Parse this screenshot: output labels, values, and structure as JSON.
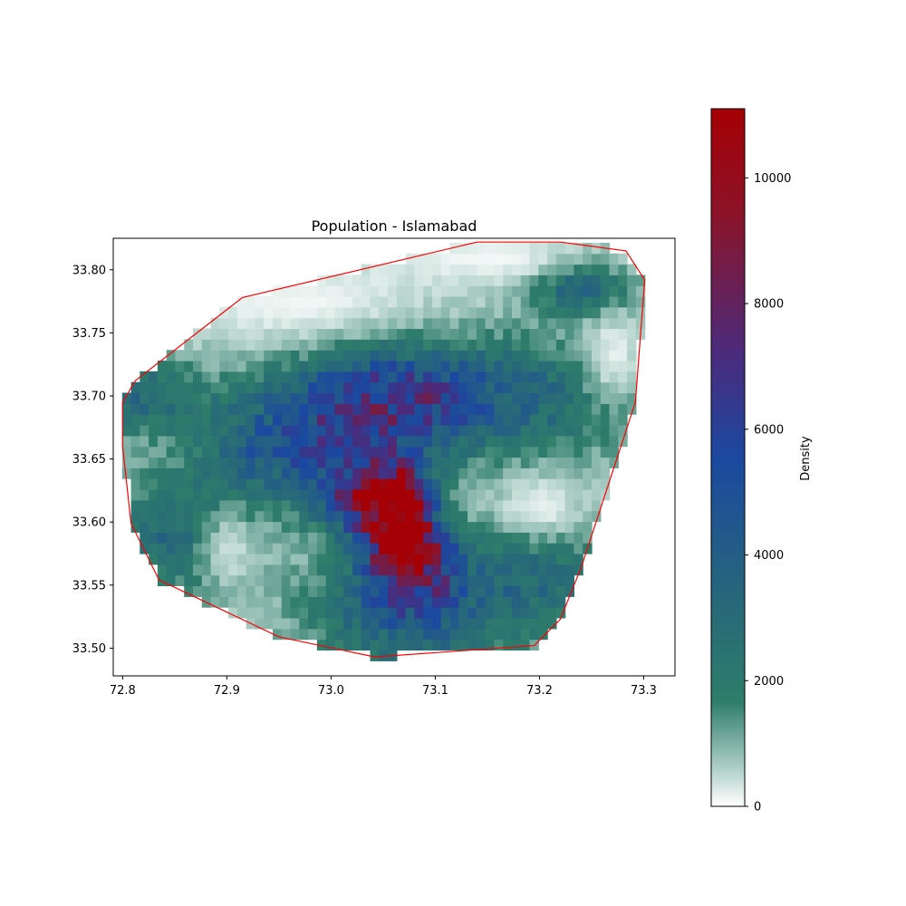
{
  "chart_data": {
    "type": "heatmap",
    "title": "Population - Islamabad",
    "xlabel": "",
    "ylabel": "",
    "xlim": [
      72.791,
      73.33
    ],
    "ylim": [
      33.478,
      33.825
    ],
    "x_ticks": [
      "72.8",
      "72.9",
      "73.0",
      "73.1",
      "73.2",
      "73.3"
    ],
    "x_tick_values": [
      72.8,
      72.9,
      73.0,
      73.1,
      73.2,
      73.3
    ],
    "y_ticks": [
      "33.50",
      "33.55",
      "33.60",
      "33.65",
      "33.70",
      "33.75",
      "33.80"
    ],
    "y_tick_values": [
      33.5,
      33.55,
      33.6,
      33.65,
      33.7,
      33.75,
      33.8
    ],
    "grid": false,
    "colorbar": {
      "label": "Density",
      "min": 0,
      "max": 11100,
      "ticks": [
        "0",
        "2000",
        "4000",
        "6000",
        "8000",
        "10000"
      ],
      "tick_values": [
        0,
        2000,
        4000,
        6000,
        8000,
        10000
      ],
      "colors": [
        "#ffffff",
        "#b5d3cc",
        "#2e7d6a",
        "#27677a",
        "#1b48a0",
        "#4b2b7c",
        "#8b1328",
        "#a50005"
      ],
      "color_stops": [
        0,
        0.05,
        0.15,
        0.3,
        0.5,
        0.65,
        0.85,
        1.0
      ]
    },
    "boundary_color": "#ff0000",
    "boundary": [
      [
        73.14,
        33.822
      ],
      [
        73.22,
        33.822
      ],
      [
        73.283,
        33.815
      ],
      [
        73.301,
        33.792
      ],
      [
        73.292,
        33.695
      ],
      [
        73.24,
        33.564
      ],
      [
        73.22,
        33.523
      ],
      [
        73.195,
        33.502
      ],
      [
        73.042,
        33.493
      ],
      [
        72.95,
        33.509
      ],
      [
        72.835,
        33.554
      ],
      [
        72.808,
        33.599
      ],
      [
        72.8,
        33.66
      ],
      [
        72.8,
        33.695
      ],
      [
        72.812,
        33.712
      ],
      [
        72.915,
        33.778
      ],
      [
        73.14,
        33.822
      ]
    ],
    "hotspots": [
      {
        "x": 73.065,
        "y": 33.607,
        "value": 10500,
        "sx": 0.022,
        "sy": 0.025
      },
      {
        "x": 73.03,
        "y": 33.62,
        "value": 6200,
        "sx": 0.03,
        "sy": 0.02
      },
      {
        "x": 73.08,
        "y": 33.57,
        "value": 6000,
        "sx": 0.03,
        "sy": 0.02
      },
      {
        "x": 73.05,
        "y": 33.695,
        "value": 5600,
        "sx": 0.06,
        "sy": 0.03
      },
      {
        "x": 73.08,
        "y": 33.53,
        "value": 3800,
        "sx": 0.06,
        "sy": 0.03
      },
      {
        "x": 72.95,
        "y": 33.66,
        "value": 3600,
        "sx": 0.05,
        "sy": 0.03
      },
      {
        "x": 73.18,
        "y": 33.7,
        "value": 2600,
        "sx": 0.08,
        "sy": 0.03
      },
      {
        "x": 73.24,
        "y": 33.785,
        "value": 3200,
        "sx": 0.03,
        "sy": 0.015
      },
      {
        "x": 72.86,
        "y": 33.59,
        "value": 2800,
        "sx": 0.04,
        "sy": 0.03
      },
      {
        "x": 73.2,
        "y": 33.56,
        "value": 2200,
        "sx": 0.04,
        "sy": 0.03
      },
      {
        "x": 72.82,
        "y": 33.7,
        "value": 2400,
        "sx": 0.04,
        "sy": 0.02
      }
    ],
    "base_value": 700,
    "low_density_areas": [
      {
        "x": 72.97,
        "y": 33.775,
        "sx": 0.09,
        "sy": 0.025
      },
      {
        "x": 73.15,
        "y": 33.81,
        "sx": 0.07,
        "sy": 0.015
      },
      {
        "x": 73.27,
        "y": 33.73,
        "sx": 0.025,
        "sy": 0.03
      },
      {
        "x": 73.2,
        "y": 33.61,
        "sx": 0.03,
        "sy": 0.02
      },
      {
        "x": 72.9,
        "y": 33.58,
        "sx": 0.025,
        "sy": 0.025
      }
    ]
  }
}
